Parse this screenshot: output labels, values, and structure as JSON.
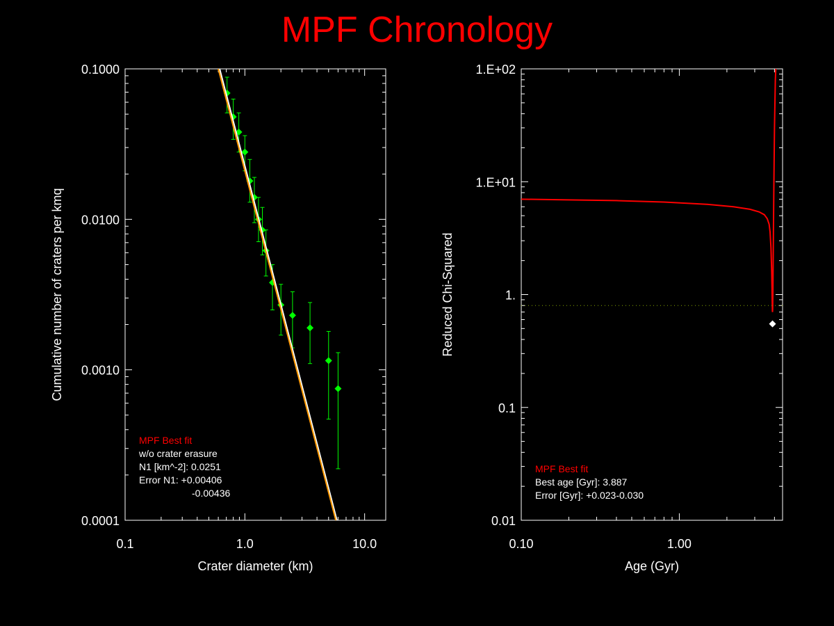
{
  "page": {
    "title": "MPF Chronology",
    "title_color": "#ff0000",
    "background": "#000000",
    "axis_color": "#ffffff",
    "points_color": "#00ff00",
    "fit_color": "#ff0000",
    "model_color": "#ffffff",
    "model2_color": "#ff9900"
  },
  "chart_data": [
    {
      "type": "scatter",
      "xscale": "log",
      "yscale": "log",
      "xlim": [
        0.1,
        15
      ],
      "ylim": [
        0.0001,
        0.1
      ],
      "xlabel": "Crater diameter (km)",
      "ylabel": "Cumulative number of craters per kmq",
      "xticks": [
        {
          "v": 0.1,
          "label": "0.1"
        },
        {
          "v": 1.0,
          "label": "1.0"
        },
        {
          "v": 10.0,
          "label": "10.0"
        }
      ],
      "yticks": [
        {
          "v": 0.0001,
          "label": "0.0001"
        },
        {
          "v": 0.001,
          "label": "0.0010"
        },
        {
          "v": 0.01,
          "label": "0.0100"
        },
        {
          "v": 0.1,
          "label": "0.1000"
        }
      ],
      "series": [
        {
          "kind": "points",
          "x": [
            0.71,
            0.8,
            0.89,
            1.0,
            1.1,
            1.2,
            1.3,
            1.4,
            1.5,
            1.7,
            2.0,
            2.5,
            3.5,
            5.0,
            6.0
          ],
          "y": [
            0.069,
            0.048,
            0.038,
            0.028,
            0.018,
            0.014,
            0.01,
            0.0085,
            0.0062,
            0.0038,
            0.0027,
            0.0023,
            0.0019,
            0.00115,
            0.00075
          ],
          "ylow": [
            0.051,
            0.034,
            0.028,
            0.021,
            0.013,
            0.0095,
            0.0071,
            0.0058,
            0.0042,
            0.0025,
            0.0017,
            0.0014,
            0.0011,
            0.00047,
            0.00022
          ],
          "yhigh": [
            0.088,
            0.063,
            0.051,
            0.036,
            0.025,
            0.019,
            0.014,
            0.012,
            0.0085,
            0.005,
            0.0037,
            0.0033,
            0.0028,
            0.0018,
            0.0013
          ]
        },
        {
          "kind": "line",
          "x": [
            0.616,
            5.87
          ],
          "y": [
            0.1,
            0.0001
          ]
        },
        {
          "kind": "line",
          "x": [
            0.6,
            5.75
          ],
          "y": [
            0.1,
            0.0001
          ]
        }
      ],
      "legend": {
        "heading": "MPF Best fit",
        "lines": [
          "w/o crater erasure",
          "N1 [km^-2]: 0.0251",
          "Error N1: +0.00406",
          "-0.00436"
        ]
      }
    },
    {
      "type": "line",
      "xscale": "log",
      "yscale": "log",
      "xlim": [
        0.1,
        4.5
      ],
      "ylim": [
        0.01,
        100
      ],
      "xlabel": "Age (Gyr)",
      "ylabel": "Reduced Chi-Squared",
      "xticks": [
        {
          "v": 0.1,
          "label": "0.10"
        },
        {
          "v": 1.0,
          "label": "1.00"
        }
      ],
      "yticks": [
        {
          "v": 0.01,
          "label": "0.01"
        },
        {
          "v": 0.1,
          "label": "0.1"
        },
        {
          "v": 1,
          "label": "1."
        },
        {
          "v": 10,
          "label": "1.E+01"
        },
        {
          "v": 100,
          "label": "1.E+02"
        }
      ],
      "series": [
        {
          "kind": "line",
          "x": [
            0.1,
            0.2,
            0.4,
            0.8,
            1.5,
            2.2,
            2.8,
            3.2,
            3.45,
            3.6,
            3.7,
            3.75,
            3.8,
            3.84,
            3.86,
            3.87,
            3.88,
            3.887,
            3.895,
            3.91,
            3.93,
            3.96,
            4.0,
            4.05,
            4.1
          ],
          "y": [
            7.0,
            6.9,
            6.8,
            6.6,
            6.3,
            6.0,
            5.7,
            5.4,
            5.1,
            4.7,
            4.2,
            3.6,
            2.6,
            1.6,
            1.1,
            0.85,
            0.72,
            0.7,
            0.75,
            1.1,
            2.5,
            8,
            30,
            80,
            120
          ]
        },
        {
          "kind": "hline",
          "y": 0.8
        }
      ],
      "marker": {
        "x": 3.887,
        "y": 0.55
      },
      "legend": {
        "heading": "MPF Best fit",
        "lines": [
          "Best age [Gyr]: 3.887",
          "Error [Gyr]: +0.023-0.030"
        ]
      }
    }
  ]
}
